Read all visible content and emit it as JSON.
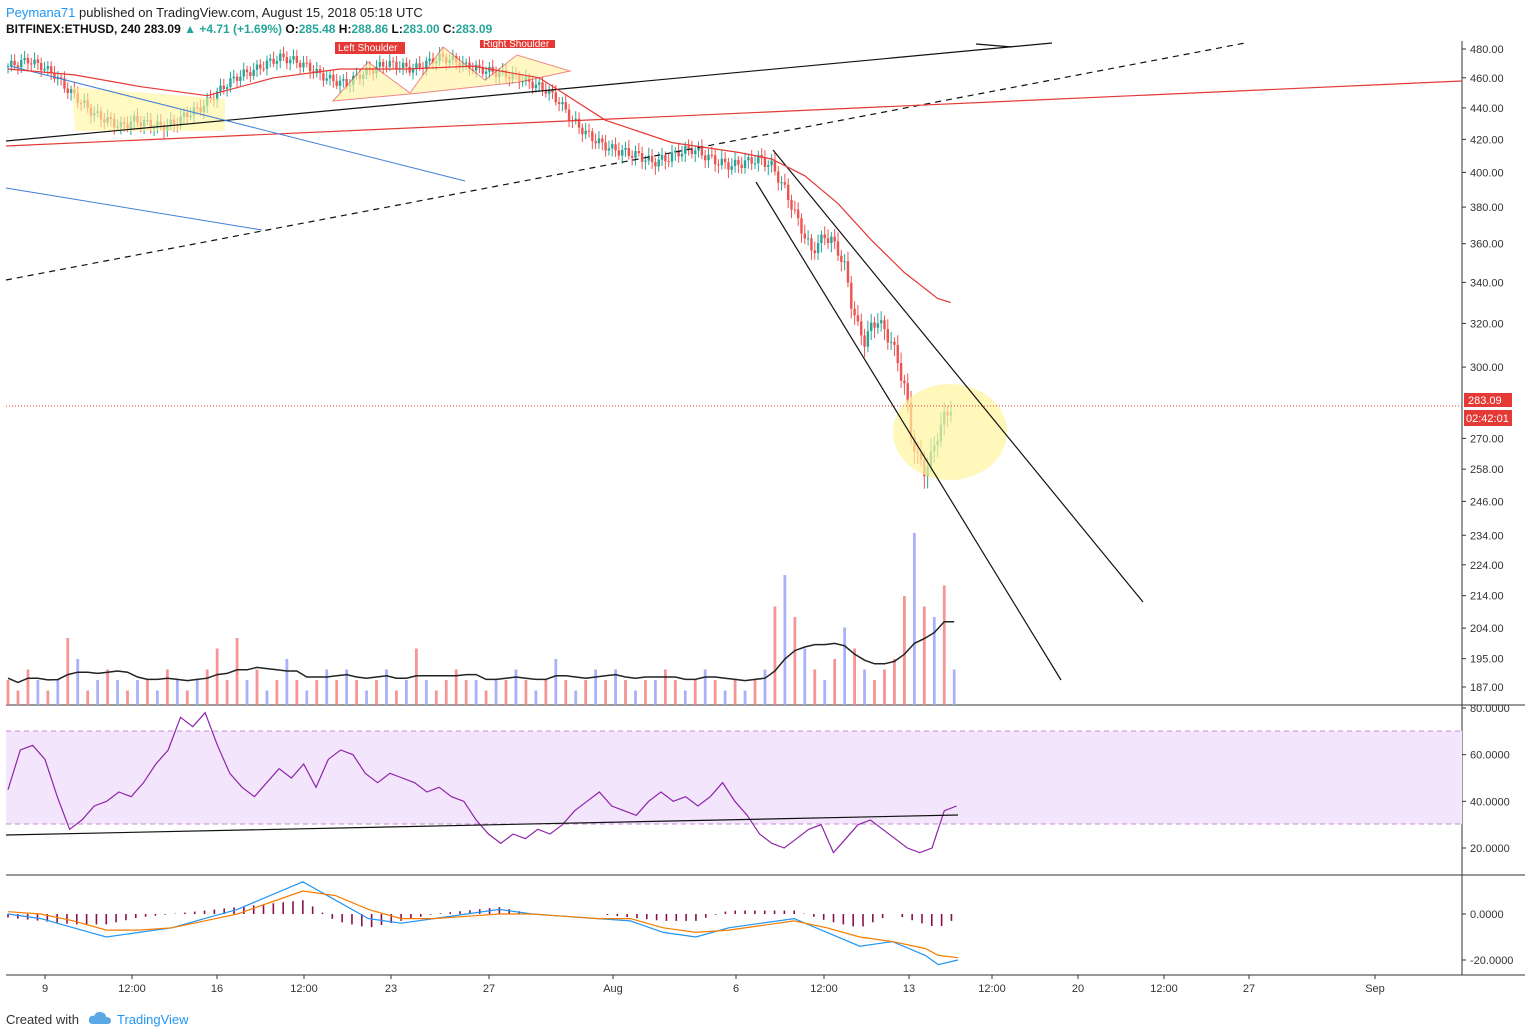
{
  "header": {
    "author": "Peymana71",
    "published_text": "published on TradingView.com, August 15, 2018 05:18 UTC",
    "symbol": "BITFINEX:ETHUSD, 240",
    "last": "283.09",
    "change": "+4.71 (+1.69%)",
    "o_label": "O:",
    "o_value": "285.48",
    "h_label": "H:",
    "h_value": "288.86",
    "l_label": "L:",
    "l_value": "283.00",
    "c_label": "C:",
    "c_value": "283.09"
  },
  "annotations": {
    "left_shoulder": "Left Shoulder",
    "right_shoulder": "Right Shoulder"
  },
  "price_badge": {
    "price": "283.09",
    "countdown": "02:42:01"
  },
  "footer": {
    "created_with": "Created with",
    "brand": "TradingView"
  },
  "colors": {
    "up": "#26a69a",
    "down": "#ef5350",
    "vol_up": "#9fa8f8",
    "vol_down": "#f48a8a",
    "ma_red": "#e53935",
    "trend_black": "#111111",
    "blue_line": "#3f7fd8",
    "rsi_line": "#8e24aa",
    "rsi_band": "#f3e5fb",
    "macd": "#2196f3",
    "signal": "#f57c00",
    "hist": "#880e4f",
    "highlight": "#fff59d"
  },
  "chart_data": {
    "type": "candlestick",
    "price_axis": {
      "ticks": [
        "480.00",
        "460.00",
        "440.00",
        "420.00",
        "400.00",
        "380.00",
        "360.00",
        "340.00",
        "320.00",
        "300.00",
        "270.00",
        "258.00",
        "246.00",
        "234.00",
        "224.00",
        "214.00",
        "204.00",
        "195.00",
        "187.00"
      ],
      "scale": "log"
    },
    "rsi_axis": {
      "ticks": [
        "80.0000",
        "60.0000",
        "40.0000",
        "20.0000"
      ],
      "band": [
        30,
        70
      ]
    },
    "macd_axis": {
      "ticks": [
        "0.0000",
        "-20.0000"
      ]
    },
    "time_axis": [
      "9",
      "12:00",
      "16",
      "12:00",
      "23",
      "27",
      "Aug",
      "6",
      "12:00",
      "13",
      "12:00",
      "20",
      "12:00",
      "27",
      "Sep"
    ],
    "last_price": 283.09,
    "close_path": [
      [
        0,
        468
      ],
      [
        6,
        472
      ],
      [
        10,
        468
      ],
      [
        14,
        462
      ],
      [
        18,
        452
      ],
      [
        22,
        444
      ],
      [
        26,
        436
      ],
      [
        30,
        432
      ],
      [
        34,
        428
      ],
      [
        38,
        432
      ],
      [
        42,
        430
      ],
      [
        46,
        428
      ],
      [
        50,
        430
      ],
      [
        54,
        436
      ],
      [
        58,
        440
      ],
      [
        62,
        448
      ],
      [
        66,
        456
      ],
      [
        70,
        462
      ],
      [
        74,
        465
      ],
      [
        78,
        470
      ],
      [
        82,
        474
      ],
      [
        86,
        472
      ],
      [
        90,
        468
      ],
      [
        94,
        462
      ],
      [
        98,
        458
      ],
      [
        102,
        456
      ],
      [
        106,
        462
      ],
      [
        110,
        466
      ],
      [
        114,
        470
      ],
      [
        118,
        468
      ],
      [
        122,
        466
      ],
      [
        126,
        470
      ],
      [
        130,
        474
      ],
      [
        134,
        472
      ],
      [
        138,
        468
      ],
      [
        142,
        466
      ],
      [
        146,
        464
      ],
      [
        150,
        462
      ],
      [
        154,
        460
      ],
      [
        158,
        456
      ],
      [
        162,
        452
      ],
      [
        166,
        444
      ],
      [
        170,
        432
      ],
      [
        174,
        424
      ],
      [
        178,
        418
      ],
      [
        182,
        414
      ],
      [
        186,
        412
      ],
      [
        190,
        410
      ],
      [
        194,
        406
      ],
      [
        198,
        408
      ],
      [
        202,
        412
      ],
      [
        206,
        414
      ],
      [
        210,
        410
      ],
      [
        214,
        406
      ],
      [
        218,
        404
      ],
      [
        222,
        406
      ],
      [
        226,
        408
      ],
      [
        230,
        404
      ],
      [
        234,
        390
      ],
      [
        238,
        372
      ],
      [
        240,
        364
      ],
      [
        242,
        356
      ],
      [
        244,
        360
      ],
      [
        246,
        364
      ],
      [
        248,
        362
      ],
      [
        250,
        356
      ],
      [
        252,
        348
      ],
      [
        254,
        330
      ],
      [
        256,
        318
      ],
      [
        258,
        312
      ],
      [
        260,
        318
      ],
      [
        262,
        322
      ],
      [
        264,
        316
      ],
      [
        266,
        312
      ],
      [
        268,
        302
      ],
      [
        270,
        292
      ],
      [
        272,
        272
      ],
      [
        274,
        262
      ],
      [
        276,
        258
      ],
      [
        278,
        262
      ],
      [
        280,
        272
      ],
      [
        282,
        278
      ],
      [
        284,
        283.09
      ]
    ],
    "ma_path": [
      [
        0,
        466
      ],
      [
        20,
        462
      ],
      [
        40,
        454
      ],
      [
        60,
        448
      ],
      [
        80,
        460
      ],
      [
        100,
        466
      ],
      [
        120,
        466
      ],
      [
        140,
        468
      ],
      [
        160,
        460
      ],
      [
        180,
        432
      ],
      [
        200,
        418
      ],
      [
        220,
        412
      ],
      [
        230,
        408
      ],
      [
        240,
        398
      ],
      [
        250,
        382
      ],
      [
        260,
        362
      ],
      [
        270,
        345
      ],
      [
        280,
        332
      ],
      [
        284,
        330
      ]
    ],
    "volume_bars": [
      [
        0,
        2
      ],
      [
        3,
        1
      ],
      [
        6,
        3
      ],
      [
        9,
        2
      ],
      [
        12,
        1
      ],
      [
        15,
        2
      ],
      [
        18,
        6
      ],
      [
        21,
        4
      ],
      [
        24,
        1
      ],
      [
        27,
        2
      ],
      [
        30,
        3
      ],
      [
        33,
        2
      ],
      [
        36,
        1
      ],
      [
        39,
        2
      ],
      [
        42,
        2
      ],
      [
        45,
        1
      ],
      [
        48,
        3
      ],
      [
        51,
        2
      ],
      [
        54,
        1
      ],
      [
        57,
        2
      ],
      [
        60,
        3
      ],
      [
        63,
        5
      ],
      [
        66,
        2
      ],
      [
        69,
        6
      ],
      [
        72,
        2
      ],
      [
        75,
        3
      ],
      [
        78,
        1
      ],
      [
        81,
        2
      ],
      [
        84,
        4
      ],
      [
        87,
        2
      ],
      [
        90,
        1
      ],
      [
        93,
        2
      ],
      [
        96,
        3
      ],
      [
        99,
        2
      ],
      [
        102,
        3
      ],
      [
        105,
        2
      ],
      [
        108,
        1
      ],
      [
        111,
        2
      ],
      [
        114,
        3
      ],
      [
        117,
        1
      ],
      [
        120,
        2
      ],
      [
        123,
        5
      ],
      [
        126,
        2
      ],
      [
        129,
        1
      ],
      [
        132,
        2
      ],
      [
        135,
        3
      ],
      [
        138,
        2
      ],
      [
        141,
        2
      ],
      [
        144,
        1
      ],
      [
        147,
        2
      ],
      [
        150,
        2
      ],
      [
        153,
        3
      ],
      [
        156,
        2
      ],
      [
        159,
        1
      ],
      [
        162,
        2
      ],
      [
        165,
        4
      ],
      [
        168,
        2
      ],
      [
        171,
        1
      ],
      [
        174,
        2
      ],
      [
        177,
        3
      ],
      [
        180,
        2
      ],
      [
        183,
        3
      ],
      [
        186,
        2
      ],
      [
        189,
        1
      ],
      [
        192,
        2
      ],
      [
        195,
        2
      ],
      [
        198,
        3
      ],
      [
        201,
        2
      ],
      [
        204,
        1
      ],
      [
        207,
        2
      ],
      [
        210,
        3
      ],
      [
        213,
        2
      ],
      [
        216,
        1
      ],
      [
        219,
        2
      ],
      [
        222,
        1
      ],
      [
        225,
        2
      ],
      [
        228,
        3
      ],
      [
        231,
        9
      ],
      [
        234,
        12
      ],
      [
        237,
        8
      ],
      [
        240,
        5
      ],
      [
        243,
        3
      ],
      [
        246,
        2
      ],
      [
        249,
        4
      ],
      [
        252,
        7
      ],
      [
        255,
        5
      ],
      [
        258,
        3
      ],
      [
        261,
        2
      ],
      [
        264,
        3
      ],
      [
        267,
        4
      ],
      [
        270,
        10
      ],
      [
        273,
        16
      ],
      [
        276,
        9
      ],
      [
        279,
        8
      ],
      [
        282,
        11
      ],
      [
        285,
        3
      ]
    ],
    "rsi_path": [
      [
        0,
        45
      ],
      [
        4,
        62
      ],
      [
        8,
        64
      ],
      [
        12,
        58
      ],
      [
        16,
        42
      ],
      [
        20,
        28
      ],
      [
        24,
        32
      ],
      [
        28,
        38
      ],
      [
        32,
        40
      ],
      [
        36,
        44
      ],
      [
        40,
        42
      ],
      [
        44,
        48
      ],
      [
        48,
        56
      ],
      [
        52,
        62
      ],
      [
        56,
        76
      ],
      [
        60,
        72
      ],
      [
        64,
        78
      ],
      [
        68,
        64
      ],
      [
        72,
        52
      ],
      [
        76,
        46
      ],
      [
        80,
        42
      ],
      [
        84,
        48
      ],
      [
        88,
        54
      ],
      [
        92,
        50
      ],
      [
        96,
        56
      ],
      [
        100,
        46
      ],
      [
        104,
        58
      ],
      [
        108,
        62
      ],
      [
        112,
        60
      ],
      [
        116,
        52
      ],
      [
        120,
        48
      ],
      [
        124,
        52
      ],
      [
        128,
        50
      ],
      [
        132,
        48
      ],
      [
        136,
        44
      ],
      [
        140,
        46
      ],
      [
        144,
        42
      ],
      [
        148,
        40
      ],
      [
        152,
        32
      ],
      [
        156,
        26
      ],
      [
        160,
        22
      ],
      [
        164,
        26
      ],
      [
        168,
        24
      ],
      [
        172,
        28
      ],
      [
        176,
        26
      ],
      [
        180,
        30
      ],
      [
        184,
        36
      ],
      [
        188,
        40
      ],
      [
        192,
        44
      ],
      [
        196,
        38
      ],
      [
        200,
        36
      ],
      [
        204,
        34
      ],
      [
        208,
        40
      ],
      [
        212,
        44
      ],
      [
        216,
        40
      ],
      [
        220,
        42
      ],
      [
        224,
        38
      ],
      [
        228,
        42
      ],
      [
        232,
        48
      ],
      [
        236,
        40
      ],
      [
        240,
        34
      ],
      [
        244,
        26
      ],
      [
        248,
        22
      ],
      [
        252,
        20
      ],
      [
        256,
        24
      ],
      [
        260,
        28
      ],
      [
        264,
        30
      ],
      [
        268,
        18
      ],
      [
        272,
        24
      ],
      [
        276,
        30
      ],
      [
        280,
        32
      ],
      [
        284,
        28
      ],
      [
        288,
        24
      ],
      [
        292,
        20
      ],
      [
        296,
        18
      ],
      [
        300,
        20
      ],
      [
        304,
        36
      ],
      [
        308,
        38
      ]
    ],
    "macd_path": [
      [
        0,
        0
      ],
      [
        10,
        -2
      ],
      [
        20,
        -6
      ],
      [
        30,
        -10
      ],
      [
        40,
        -8
      ],
      [
        50,
        -6
      ],
      [
        60,
        -2
      ],
      [
        70,
        2
      ],
      [
        80,
        8
      ],
      [
        90,
        14
      ],
      [
        100,
        6
      ],
      [
        110,
        -2
      ],
      [
        120,
        -4
      ],
      [
        130,
        -2
      ],
      [
        140,
        0
      ],
      [
        150,
        2
      ],
      [
        160,
        0
      ],
      [
        170,
        -1
      ],
      [
        180,
        -2
      ],
      [
        190,
        -3
      ],
      [
        200,
        -8
      ],
      [
        210,
        -10
      ],
      [
        220,
        -6
      ],
      [
        230,
        -4
      ],
      [
        240,
        -2
      ],
      [
        250,
        -8
      ],
      [
        260,
        -14
      ],
      [
        270,
        -12
      ],
      [
        280,
        -18
      ],
      [
        284,
        -22
      ],
      [
        290,
        -20
      ]
    ],
    "signal_path": [
      [
        0,
        1
      ],
      [
        10,
        0
      ],
      [
        20,
        -3
      ],
      [
        30,
        -7
      ],
      [
        40,
        -7
      ],
      [
        50,
        -6
      ],
      [
        60,
        -3
      ],
      [
        70,
        0
      ],
      [
        80,
        5
      ],
      [
        90,
        10
      ],
      [
        100,
        8
      ],
      [
        110,
        2
      ],
      [
        120,
        -2
      ],
      [
        130,
        -2
      ],
      [
        140,
        -1
      ],
      [
        150,
        0
      ],
      [
        160,
        0
      ],
      [
        170,
        -1
      ],
      [
        180,
        -2
      ],
      [
        190,
        -2
      ],
      [
        200,
        -6
      ],
      [
        210,
        -8
      ],
      [
        220,
        -7
      ],
      [
        230,
        -5
      ],
      [
        240,
        -3
      ],
      [
        250,
        -6
      ],
      [
        260,
        -10
      ],
      [
        270,
        -12
      ],
      [
        280,
        -15
      ],
      [
        284,
        -18
      ],
      [
        290,
        -19
      ]
    ]
  }
}
